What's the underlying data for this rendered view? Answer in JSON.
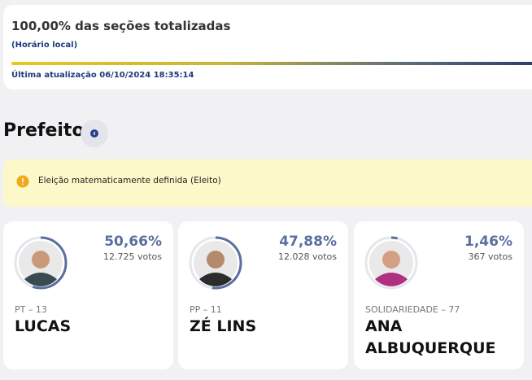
{
  "header": {
    "progress_text": "100,00% das seções totalizadas",
    "timezone": "(Horário local)",
    "last_update": "Última atualização 06/10/2024 18:35:14"
  },
  "section": {
    "title": "Prefeito"
  },
  "notice": {
    "text": "Eleição matematicamente definida (Eleito)"
  },
  "candidates": [
    {
      "percent": "50,66%",
      "votes": "12.725 votos",
      "party": "PT – 13",
      "name": "LUCAS"
    },
    {
      "percent": "47,88%",
      "votes": "12.028 votos",
      "party": "PP – 11",
      "name": "ZÉ LINS"
    },
    {
      "percent": "1,46%",
      "votes": "367 votos",
      "party": "SOLIDARIEDADE – 77",
      "name": "ANA ALBUQUERQUE"
    }
  ]
}
